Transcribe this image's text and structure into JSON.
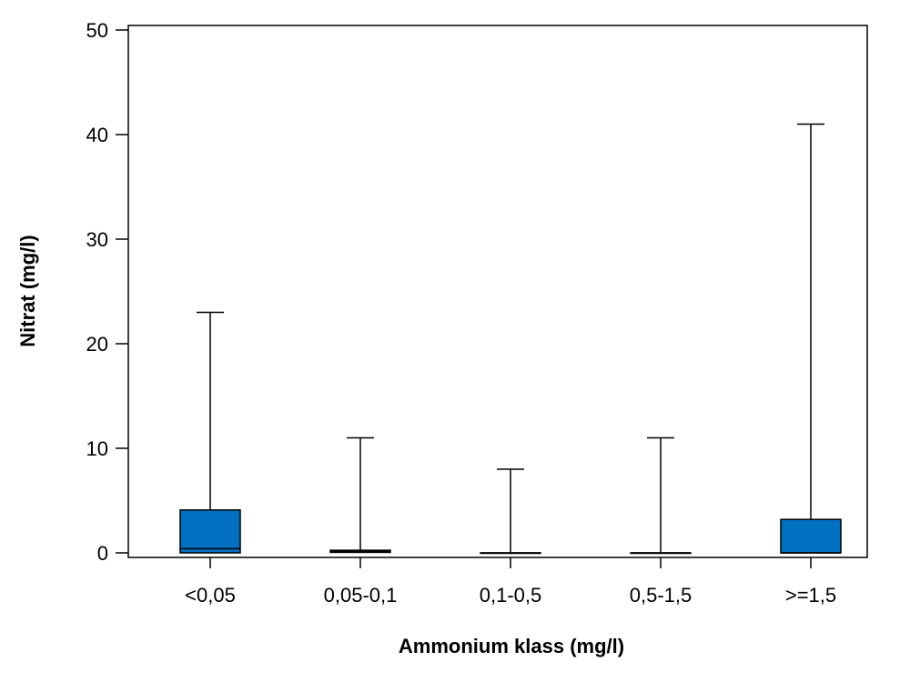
{
  "chart_data": {
    "type": "boxplot",
    "xlabel": "Ammonium klass (mg/l)",
    "ylabel": "Nitrat (mg/l)",
    "ylim": [
      0,
      50
    ],
    "yticks": [
      0,
      10,
      20,
      30,
      40,
      50
    ],
    "grid": false,
    "box_color": "#0070C0",
    "categories": [
      "<0,05",
      "0,05-0,1",
      "0,1-0,5",
      "0,5-1,5",
      ">=1,5"
    ],
    "boxes": [
      {
        "category": "<0,05",
        "min": 0,
        "q1": 0,
        "median": 0.4,
        "q3": 4.1,
        "max": 23
      },
      {
        "category": "0,05-0,1",
        "min": 0,
        "q1": 0.05,
        "median": 0.15,
        "q3": 0.25,
        "max": 11
      },
      {
        "category": "0,1-0,5",
        "min": 0,
        "q1": 0,
        "median": 0,
        "q3": 0,
        "max": 8
      },
      {
        "category": "0,5-1,5",
        "min": 0,
        "q1": 0,
        "median": 0,
        "q3": 0,
        "max": 11
      },
      {
        "category": ">=1,5",
        "min": 0,
        "q1": 0,
        "median": 0,
        "q3": 3.2,
        "max": 41
      }
    ]
  }
}
